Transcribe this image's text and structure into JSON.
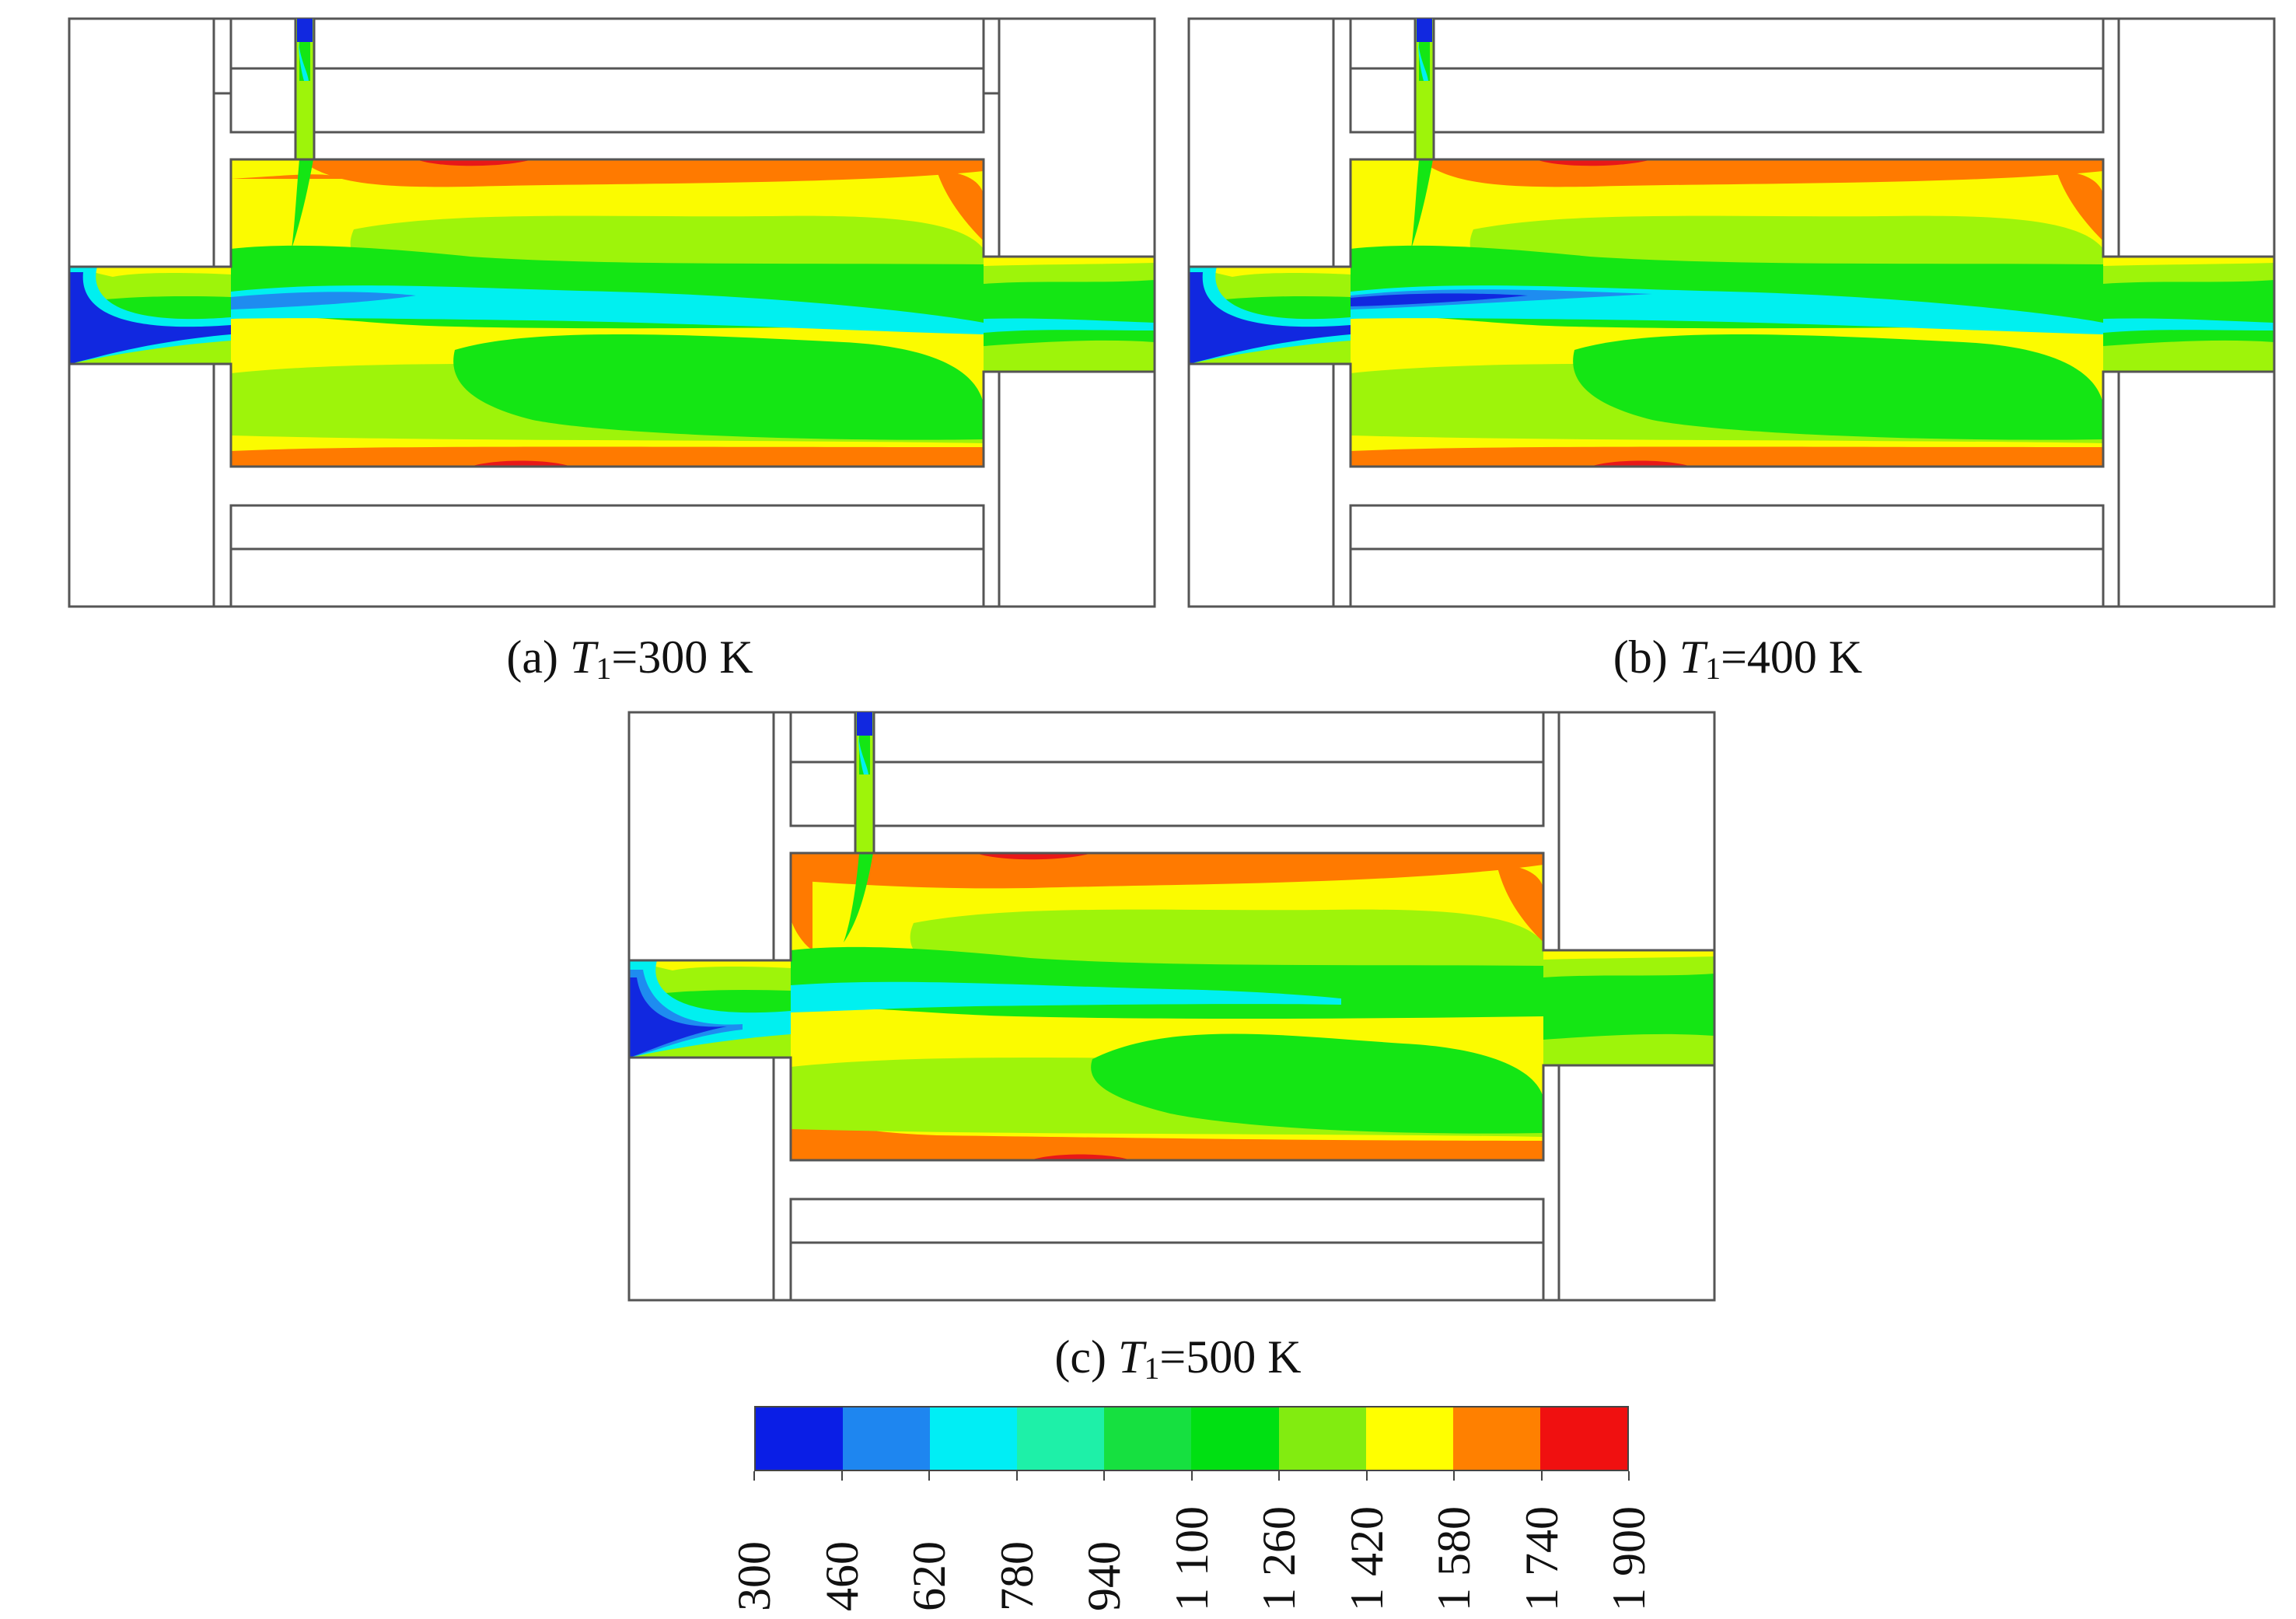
{
  "panels": [
    {
      "label": "(a) ",
      "var": "T",
      "sub": "1",
      "rest": "=300 K"
    },
    {
      "label": "(b) ",
      "var": "T",
      "sub": "1",
      "rest": "=400 K"
    },
    {
      "label": "(c) ",
      "var": "T",
      "sub": "1",
      "rest": "=500 K"
    }
  ],
  "colorbar": {
    "ticks": [
      "300",
      "460",
      "620",
      "780",
      "940",
      "1 100",
      "1 260",
      "1 420",
      "1 580",
      "1 740",
      "1 900"
    ],
    "colors": [
      "#0a1ee6",
      "#1e86f0",
      "#00eef5",
      "#1ef0a8",
      "#16e040",
      "#00e012",
      "#82ec10",
      "#ffff00",
      "#ff8000",
      "#f01010"
    ]
  },
  "palette": {
    "orange": "#ff7a00",
    "red": "#e81818",
    "yellow": "#fbfb00",
    "yellowgreen": "#9ef40a",
    "green": "#14e614",
    "cyan": "#00f0f0",
    "blue": "#1128e0",
    "lightblue": "#1e8cf0",
    "outline": "#555555"
  }
}
